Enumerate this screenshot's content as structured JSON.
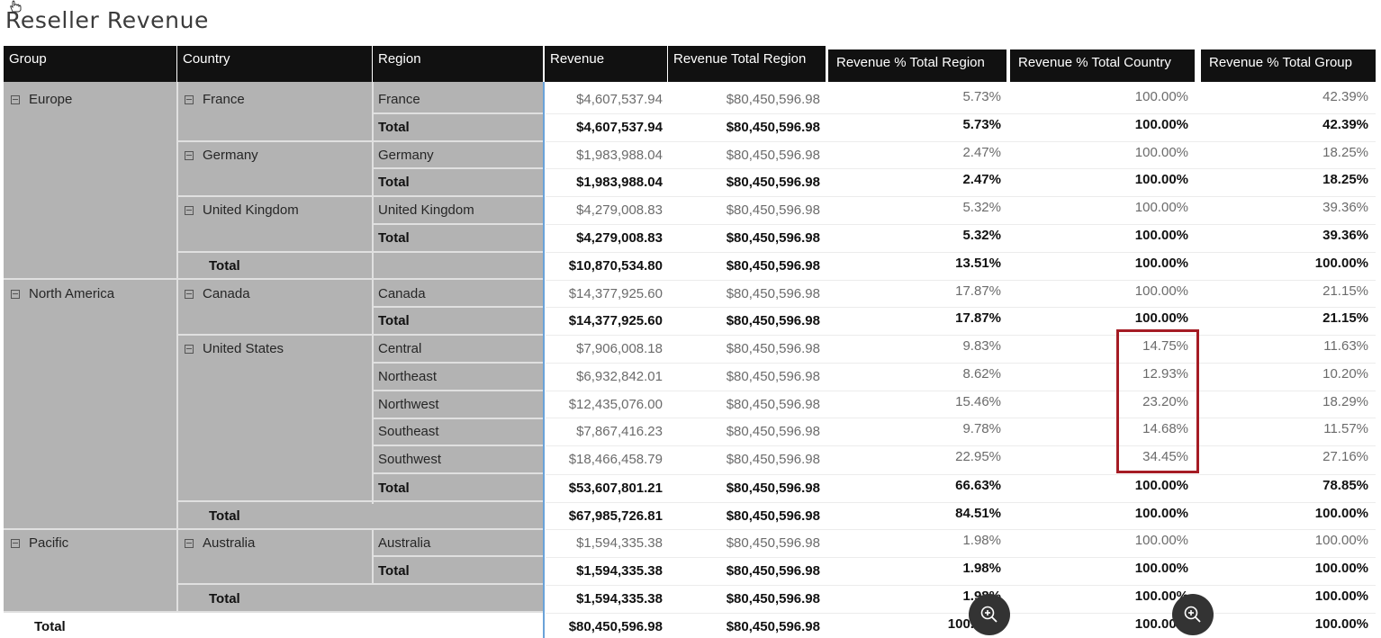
{
  "title": "Reseller Revenue",
  "headers": {
    "group": "Group",
    "country": "Country",
    "region": "Region",
    "revenue": "Revenue",
    "rev_total_region": "Revenue Total Region",
    "pct_region": "Revenue % Total Region",
    "pct_country": "Revenue % Total Country",
    "pct_group": "Revenue % Total Group"
  },
  "groups": [
    {
      "label": "Europe"
    },
    {
      "label": "North America"
    },
    {
      "label": "Pacific"
    }
  ],
  "countries": [
    {
      "label": "France"
    },
    {
      "label": "Germany"
    },
    {
      "label": "United Kingdom"
    },
    {
      "label": "Canada"
    },
    {
      "label": "United States"
    },
    {
      "label": "Australia"
    }
  ],
  "total_label": "Total",
  "rows": [
    {
      "region": "France",
      "revenue": "$4,607,537.94",
      "rtr": "$80,450,596.98",
      "pr": "5.73%",
      "pc": "100.00%",
      "pg": "42.39%"
    },
    {
      "region": "Total",
      "revenue": "$4,607,537.94",
      "rtr": "$80,450,596.98",
      "pr": "5.73%",
      "pc": "100.00%",
      "pg": "42.39%"
    },
    {
      "region": "Germany",
      "revenue": "$1,983,988.04",
      "rtr": "$80,450,596.98",
      "pr": "2.47%",
      "pc": "100.00%",
      "pg": "18.25%"
    },
    {
      "region": "Total",
      "revenue": "$1,983,988.04",
      "rtr": "$80,450,596.98",
      "pr": "2.47%",
      "pc": "100.00%",
      "pg": "18.25%"
    },
    {
      "region": "United Kingdom",
      "revenue": "$4,279,008.83",
      "rtr": "$80,450,596.98",
      "pr": "5.32%",
      "pc": "100.00%",
      "pg": "39.36%"
    },
    {
      "region": "Total",
      "revenue": "$4,279,008.83",
      "rtr": "$80,450,596.98",
      "pr": "5.32%",
      "pc": "100.00%",
      "pg": "39.36%"
    },
    {
      "region": "",
      "revenue": "$10,870,534.80",
      "rtr": "$80,450,596.98",
      "pr": "13.51%",
      "pc": "100.00%",
      "pg": "100.00%"
    },
    {
      "region": "Canada",
      "revenue": "$14,377,925.60",
      "rtr": "$80,450,596.98",
      "pr": "17.87%",
      "pc": "100.00%",
      "pg": "21.15%"
    },
    {
      "region": "Total",
      "revenue": "$14,377,925.60",
      "rtr": "$80,450,596.98",
      "pr": "17.87%",
      "pc": "100.00%",
      "pg": "21.15%"
    },
    {
      "region": "Central",
      "revenue": "$7,906,008.18",
      "rtr": "$80,450,596.98",
      "pr": "9.83%",
      "pc": "14.75%",
      "pg": "11.63%"
    },
    {
      "region": "Northeast",
      "revenue": "$6,932,842.01",
      "rtr": "$80,450,596.98",
      "pr": "8.62%",
      "pc": "12.93%",
      "pg": "10.20%"
    },
    {
      "region": "Northwest",
      "revenue": "$12,435,076.00",
      "rtr": "$80,450,596.98",
      "pr": "15.46%",
      "pc": "23.20%",
      "pg": "18.29%"
    },
    {
      "region": "Southeast",
      "revenue": "$7,867,416.23",
      "rtr": "$80,450,596.98",
      "pr": "9.78%",
      "pc": "14.68%",
      "pg": "11.57%"
    },
    {
      "region": "Southwest",
      "revenue": "$18,466,458.79",
      "rtr": "$80,450,596.98",
      "pr": "22.95%",
      "pc": "34.45%",
      "pg": "27.16%"
    },
    {
      "region": "Total",
      "revenue": "$53,607,801.21",
      "rtr": "$80,450,596.98",
      "pr": "66.63%",
      "pc": "100.00%",
      "pg": "78.85%"
    },
    {
      "region": "",
      "revenue": "$67,985,726.81",
      "rtr": "$80,450,596.98",
      "pr": "84.51%",
      "pc": "100.00%",
      "pg": "100.00%"
    },
    {
      "region": "Australia",
      "revenue": "$1,594,335.38",
      "rtr": "$80,450,596.98",
      "pr": "1.98%",
      "pc": "100.00%",
      "pg": "100.00%"
    },
    {
      "region": "Total",
      "revenue": "$1,594,335.38",
      "rtr": "$80,450,596.98",
      "pr": "1.98%",
      "pc": "100.00%",
      "pg": "100.00%"
    },
    {
      "region": "",
      "revenue": "$1,594,335.38",
      "rtr": "$80,450,596.98",
      "pr": "1.98%",
      "pc": "100.00%",
      "pg": "100.00%"
    },
    {
      "region": "",
      "revenue": "$80,450,596.98",
      "rtr": "$80,450,596.98",
      "pr": "100.00%",
      "pc": "100.00%",
      "pg": "100.00%"
    }
  ],
  "highlight_color": "#a51c24"
}
